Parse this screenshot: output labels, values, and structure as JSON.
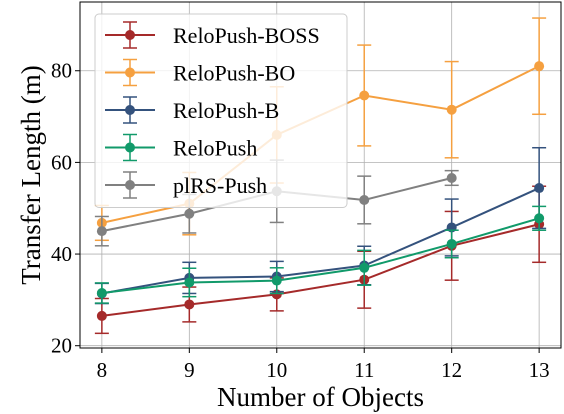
{
  "chart_data": {
    "type": "line",
    "xlabel": "Number of Objects",
    "ylabel": "Transfer Length (m)",
    "x": [
      8,
      9,
      10,
      11,
      12,
      13
    ],
    "xticks": [
      "8",
      "9",
      "10",
      "11",
      "12",
      "13"
    ],
    "yticks": [
      "20",
      "40",
      "60",
      "80"
    ],
    "xlim": [
      7.75,
      13.25
    ],
    "ylim": [
      19.5,
      95
    ],
    "grid": true,
    "legend_position": "upper-left",
    "series": [
      {
        "name": "ReloPush-BOSS",
        "color": "#a52a2a",
        "x": [
          8,
          9,
          10,
          11,
          12,
          13
        ],
        "y": [
          26.5,
          29.0,
          31.2,
          34.4,
          41.8,
          46.5
        ],
        "err": [
          3.8,
          3.8,
          3.6,
          6.2,
          7.5,
          8.3
        ]
      },
      {
        "name": "ReloPush-BO",
        "color": "#f5a040",
        "x": [
          8,
          9,
          10,
          11,
          12,
          13
        ],
        "y": [
          46.8,
          51.0,
          66.0,
          74.6,
          71.5,
          81.0
        ],
        "err": [
          3.8,
          6.8,
          10.5,
          11.0,
          10.5,
          10.5
        ]
      },
      {
        "name": "ReloPush-B",
        "color": "#34527d",
        "x": [
          8,
          9,
          10,
          11,
          12,
          13
        ],
        "y": [
          31.4,
          34.8,
          35.1,
          37.5,
          45.8,
          54.4
        ],
        "err": [
          2.2,
          3.4,
          3.3,
          4.2,
          6.2,
          8.8
        ]
      },
      {
        "name": "ReloPush",
        "color": "#119a6a",
        "x": [
          8,
          9,
          10,
          11,
          12,
          13
        ],
        "y": [
          31.5,
          33.8,
          34.2,
          37.0,
          42.2,
          47.8
        ],
        "err": [
          2.2,
          3.1,
          2.8,
          3.8,
          3.0,
          2.6
        ]
      },
      {
        "name": "plRS-Push",
        "color": "#808080",
        "x": [
          8,
          9,
          10,
          11,
          12
        ],
        "y": [
          45.0,
          48.8,
          53.7,
          51.8,
          56.6
        ],
        "err": [
          3.2,
          4.2,
          6.8,
          5.2,
          1.6
        ]
      }
    ]
  }
}
